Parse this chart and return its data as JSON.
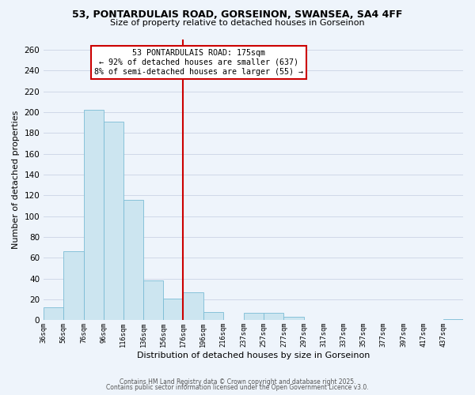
{
  "title_line1": "53, PONTARDULAIS ROAD, GORSEINON, SWANSEA, SA4 4FF",
  "title_line2": "Size of property relative to detached houses in Gorseinon",
  "xlabel": "Distribution of detached houses by size in Gorseinon",
  "ylabel": "Number of detached properties",
  "bar_edges": [
    36,
    56,
    76,
    96,
    116,
    136,
    156,
    176,
    196,
    216,
    237,
    257,
    277,
    297,
    317,
    337,
    357,
    377,
    397,
    417,
    437
  ],
  "bar_heights": [
    12,
    66,
    202,
    191,
    116,
    38,
    21,
    27,
    8,
    0,
    7,
    7,
    3,
    0,
    0,
    0,
    0,
    0,
    0,
    0,
    1
  ],
  "bar_color": "#cce5f0",
  "bar_edgecolor": "#7bbcd5",
  "vline_x": 176,
  "vline_color": "#cc0000",
  "annotation_title": "53 PONTARDULAIS ROAD: 175sqm",
  "annotation_line1": "← 92% of detached houses are smaller (637)",
  "annotation_line2": "8% of semi-detached houses are larger (55) →",
  "annotation_box_edgecolor": "#cc0000",
  "ylim": [
    0,
    270
  ],
  "yticks": [
    0,
    20,
    40,
    60,
    80,
    100,
    120,
    140,
    160,
    180,
    200,
    220,
    240,
    260
  ],
  "grid_color": "#d0d8e8",
  "background_color": "#eef4fb",
  "footer_line1": "Contains HM Land Registry data © Crown copyright and database right 2025.",
  "footer_line2": "Contains public sector information licensed under the Open Government Licence v3.0.",
  "tick_labels": [
    "36sqm",
    "56sqm",
    "76sqm",
    "96sqm",
    "116sqm",
    "136sqm",
    "156sqm",
    "176sqm",
    "196sqm",
    "216sqm",
    "237sqm",
    "257sqm",
    "277sqm",
    "297sqm",
    "317sqm",
    "337sqm",
    "357sqm",
    "377sqm",
    "397sqm",
    "417sqm",
    "437sqm"
  ]
}
